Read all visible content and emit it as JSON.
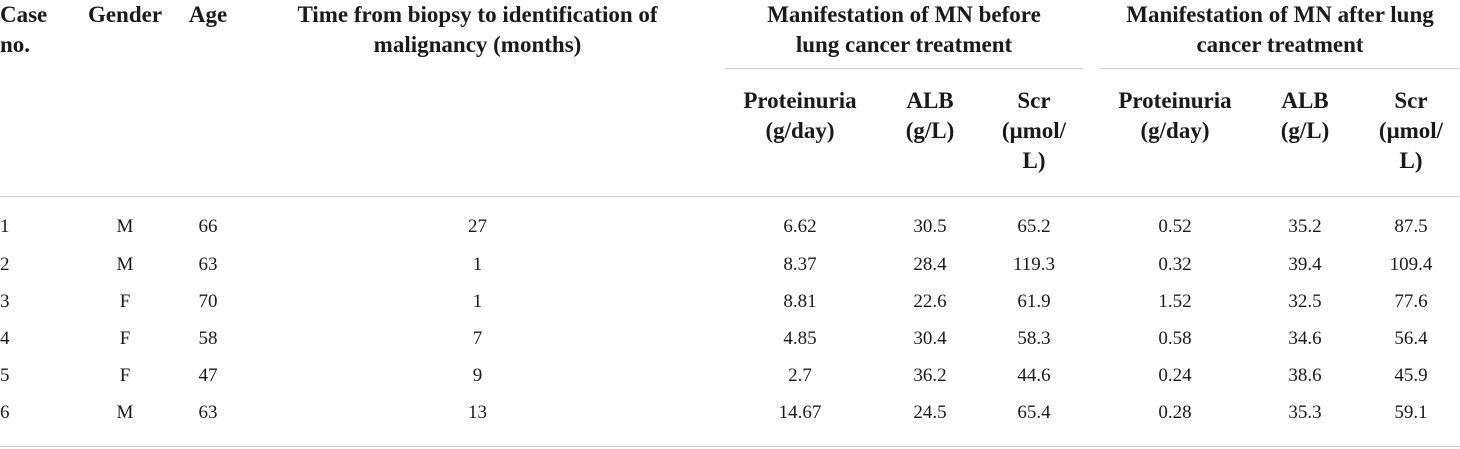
{
  "table": {
    "headers": {
      "case_no": "Case\nno.",
      "gender": "Gender",
      "age": "Age",
      "time": "Time from biopsy to identification of\nmalignancy (months)",
      "before_group": "Manifestation of MN before\nlung cancer treatment",
      "after_group": "Manifestation of MN after lung\ncancer treatment",
      "proteinuria": "Proteinuria\n(g/day)",
      "alb": "ALB\n(g/L)",
      "scr": "Scr\n(μmol/\nL)"
    },
    "rows": [
      [
        "1",
        "M",
        "66",
        "27",
        "6.62",
        "30.5",
        "65.2",
        "0.52",
        "35.2",
        "87.5"
      ],
      [
        "2",
        "M",
        "63",
        "1",
        "8.37",
        "28.4",
        "119.3",
        "0.32",
        "39.4",
        "109.4"
      ],
      [
        "3",
        "F",
        "70",
        "1",
        "8.81",
        "22.6",
        "61.9",
        "1.52",
        "32.5",
        "77.6"
      ],
      [
        "4",
        "F",
        "58",
        "7",
        "4.85",
        "30.4",
        "58.3",
        "0.58",
        "34.6",
        "56.4"
      ],
      [
        "5",
        "F",
        "47",
        "9",
        "2.7",
        "36.2",
        "44.6",
        "0.24",
        "38.6",
        "45.9"
      ],
      [
        "6",
        "M",
        "63",
        "13",
        "14.67",
        "24.5",
        "65.4",
        "0.28",
        "35.3",
        "59.1"
      ]
    ]
  }
}
